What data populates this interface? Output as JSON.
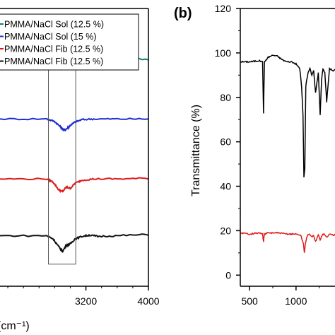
{
  "panels": {
    "b_label": "(b)"
  },
  "chart_data": [
    {
      "type": "line",
      "panel": "a",
      "xlabel": "(cm⁻¹)",
      "xlim": [
        2100,
        4000
      ],
      "x_ticks": [
        "3200",
        "4000"
      ],
      "x_tick_values": [
        3200,
        4000
      ],
      "grid": false,
      "legend_position": "top",
      "series": [
        {
          "name": "PMMA/NaCl Sol (12.5 %)",
          "color": "#0f7f78",
          "x": [
            2100,
            2700,
            2800,
            2880,
            2950,
            3000,
            3050,
            3150,
            3300,
            3600,
            4000
          ],
          "y": [
            3.15,
            3.15,
            3.12,
            3.05,
            3.0,
            3.06,
            3.1,
            3.14,
            3.15,
            3.15,
            3.15
          ]
        },
        {
          "name": "PMMA/NaCl Sol (15 %)",
          "color": "#1f2fd0",
          "x": [
            2100,
            2700,
            2800,
            2870,
            2920,
            2960,
            3000,
            3060,
            3150,
            3300,
            3600,
            4000
          ],
          "y": [
            2.2,
            2.2,
            2.16,
            2.08,
            2.02,
            2.05,
            2.1,
            2.15,
            2.19,
            2.2,
            2.2,
            2.2
          ]
        },
        {
          "name": "PMMA/NaCl Fib (12.5 %)",
          "color": "#e01b1b",
          "x": [
            2100,
            2700,
            2780,
            2850,
            2900,
            2950,
            3000,
            3060,
            3150,
            3300,
            3600,
            4000
          ],
          "y": [
            1.25,
            1.25,
            1.2,
            1.08,
            1.05,
            1.12,
            1.1,
            1.18,
            1.23,
            1.25,
            1.25,
            1.26
          ]
        },
        {
          "name": "PMMA/NaCl Fib (12.5 %)",
          "color": "#111111",
          "x": [
            2100,
            2700,
            2780,
            2850,
            2900,
            2950,
            3000,
            3060,
            3150,
            3250,
            3350,
            3600,
            4000
          ],
          "y": [
            0.35,
            0.35,
            0.3,
            0.18,
            0.1,
            0.2,
            0.22,
            0.3,
            0.34,
            0.36,
            0.34,
            0.35,
            0.37
          ]
        }
      ],
      "box": {
        "x": [
          2720,
          3070
        ],
        "y": [
          -0.1,
          3.8
        ]
      }
    },
    {
      "type": "line",
      "panel": "b",
      "ylabel": "Transmittance (%)",
      "xlim": [
        400,
        1450
      ],
      "ylim": [
        -5,
        120
      ],
      "x_ticks": [
        "500",
        "1000"
      ],
      "x_tick_values": [
        500,
        1000
      ],
      "y_ticks": [
        "0",
        "20",
        "40",
        "60",
        "80",
        "100",
        "120"
      ],
      "y_tick_values": [
        0,
        20,
        40,
        60,
        80,
        100,
        120
      ],
      "grid": false,
      "series": [
        {
          "color": "#000000",
          "x": [
            400,
            500,
            600,
            640,
            650,
            660,
            700,
            750,
            800,
            850,
            900,
            950,
            1000,
            1040,
            1060,
            1075,
            1085,
            1095,
            1105,
            1115,
            1130,
            1150,
            1170,
            1190,
            1210,
            1240,
            1260,
            1275,
            1290,
            1310,
            1330,
            1360,
            1400,
            1450
          ],
          "y": [
            96,
            96,
            96.5,
            96,
            73,
            96,
            98,
            99,
            98.5,
            97,
            96,
            96,
            95,
            93,
            85,
            72,
            44,
            48,
            85,
            88,
            91,
            93,
            90,
            92,
            82,
            91,
            72,
            88,
            93,
            91,
            78,
            93,
            92,
            93
          ]
        },
        {
          "color": "#e01b1b",
          "x": [
            400,
            500,
            600,
            640,
            650,
            660,
            700,
            800,
            900,
            1000,
            1050,
            1080,
            1090,
            1100,
            1115,
            1130,
            1150,
            1170,
            1190,
            1210,
            1240,
            1260,
            1280,
            1300,
            1330,
            1360,
            1400,
            1450
          ],
          "y": [
            19,
            18.5,
            19,
            18.5,
            15,
            18.5,
            19,
            19,
            18.5,
            18.5,
            18,
            14,
            10,
            14,
            17,
            18,
            18.5,
            17,
            18,
            15,
            18,
            16,
            18,
            18.5,
            17,
            18.5,
            18,
            18.5
          ]
        }
      ]
    }
  ]
}
